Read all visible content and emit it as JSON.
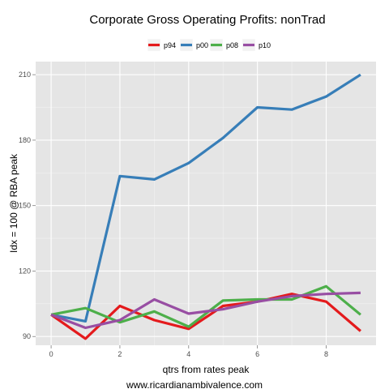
{
  "chart_data": {
    "type": "line",
    "title": "Corporate Gross Operating Profits: nonTrad",
    "xlabel": "qtrs from rates peak",
    "ylabel": "Idx = 100 @ RBA peak",
    "xlim": [
      -0.45,
      9.45
    ],
    "ylim": [
      86,
      216
    ],
    "xticks": [
      0,
      2,
      4,
      6,
      8
    ],
    "yticks": [
      90,
      120,
      150,
      180,
      210
    ],
    "grid": true,
    "legend_position": "top",
    "x": [
      0,
      1,
      2,
      3,
      4,
      5,
      6,
      7,
      8,
      9
    ],
    "series": [
      {
        "name": "p94",
        "color": "#e41a1c",
        "values": [
          100,
          89,
          104,
          97.5,
          93.5,
          104,
          106,
          109.5,
          106,
          92.5
        ]
      },
      {
        "name": "p00",
        "color": "#377eb8",
        "values": [
          100,
          97,
          163.5,
          162,
          169.5,
          181,
          195,
          194,
          200,
          210
        ]
      },
      {
        "name": "p08",
        "color": "#4daf4a",
        "values": [
          100,
          103,
          96.5,
          101.5,
          94.5,
          106.5,
          107,
          107,
          113,
          100
        ]
      },
      {
        "name": "p10",
        "color": "#984ea3",
        "values": [
          100,
          94,
          97.5,
          107,
          100.5,
          102.5,
          106,
          108.5,
          109.5,
          110
        ]
      }
    ]
  },
  "footer": {
    "credit": "www.ricardianambivalence.com"
  }
}
